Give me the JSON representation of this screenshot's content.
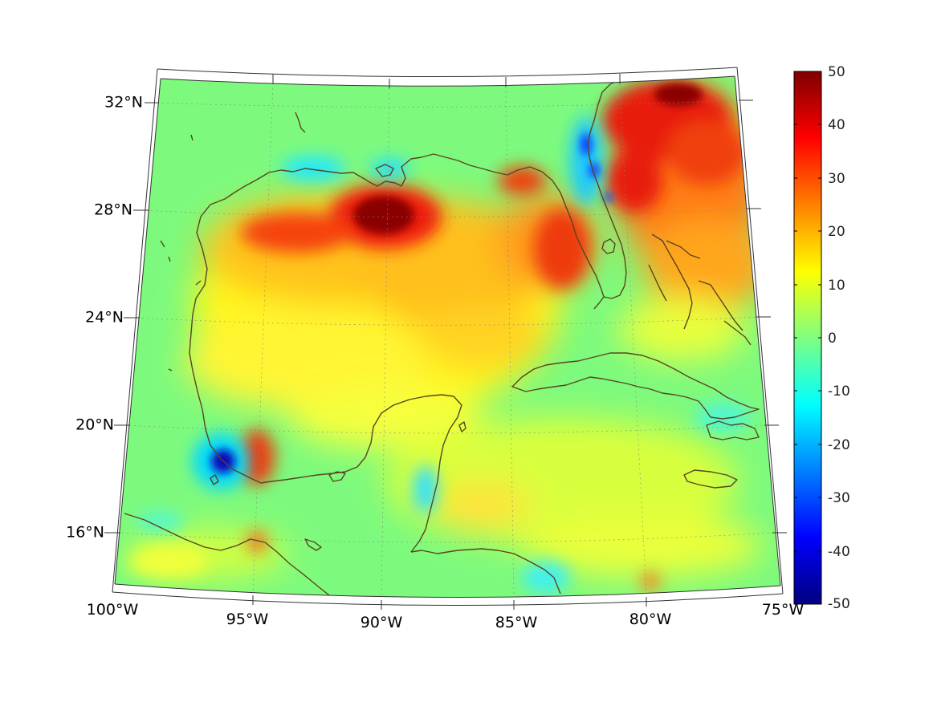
{
  "map": {
    "region": "Gulf of Mexico",
    "lon_range": [
      -100,
      -75
    ],
    "lat_range": [
      14,
      33
    ],
    "lat_ticks": [
      "32°N",
      "28°N",
      "24°N",
      "20°N",
      "16°N"
    ],
    "lon_ticks": [
      "100°W",
      "95°W",
      "90°W",
      "85°W",
      "80°W",
      "75°W"
    ],
    "colormap": "jet",
    "coastline_color": "#5a4520",
    "grid": true
  },
  "colorbar": {
    "min": -50,
    "max": 50,
    "ticks": [
      "50",
      "40",
      "30",
      "20",
      "10",
      "0",
      "-10",
      "-20",
      "-30",
      "-40",
      "-50"
    ]
  }
}
